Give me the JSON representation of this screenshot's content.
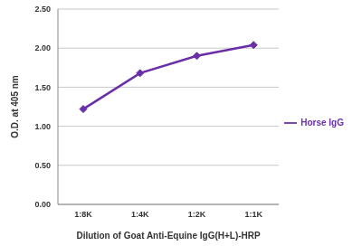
{
  "chart_data": {
    "type": "line",
    "x_label": "Dilution of Goat Anti-Equine IgG(H+L)-HRP",
    "y_label": "O.D. at 405 nm",
    "categories": [
      "1:8K",
      "1:4K",
      "1:2K",
      "1:1K"
    ],
    "series": [
      {
        "name": "Horse IgG",
        "color": "#6a2fa8",
        "values": [
          1.22,
          1.68,
          1.9,
          2.04
        ],
        "marker": "diamond"
      }
    ],
    "ylim": [
      0,
      2.5
    ],
    "yticks": [
      {
        "value": 0,
        "label": "0.00"
      },
      {
        "value": 0.5,
        "label": "0.50"
      },
      {
        "value": 1,
        "label": "1.00"
      },
      {
        "value": 1.5,
        "label": "1.50"
      },
      {
        "value": 2,
        "label": "2.00"
      },
      {
        "value": 2.5,
        "label": "2.50"
      }
    ],
    "grid": true,
    "legend": "right"
  }
}
